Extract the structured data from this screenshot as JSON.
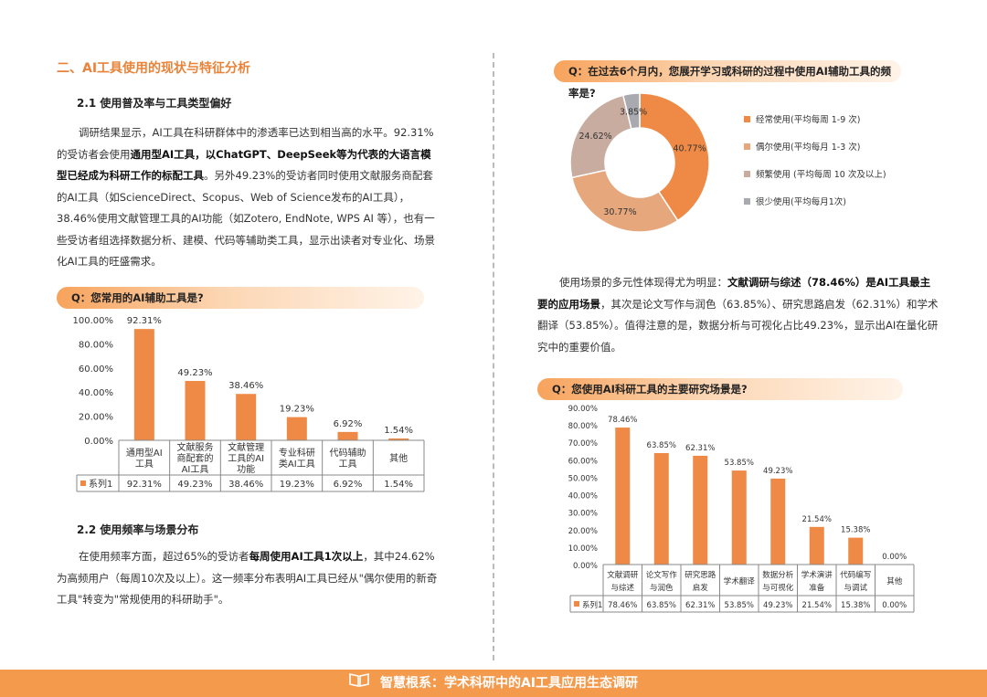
{
  "section": {
    "title": "二、AI工具使用的现状与特征分析"
  },
  "s21": {
    "title": "2.1 使用普及率与工具类型偏好",
    "p1_a": "调研结果显示，AI工具在科研群体中的渗透率已达到相当高的水平。92.31%的受访者会使用",
    "p1_b": "通用型AI工具，以ChatGPT、DeepSeek等为代表的大语言模型已经成为科研工作的标配工具",
    "p1_c": "。另外49.23%的受访者同时使用文献服务商配套的AI工具（如ScienceDirect、Scopus、Web of Science发布的AI工具），38.46%使用文献管理工具的AI功能（如Zotero, EndNote, WPS AI 等），也有一些受访者组选择数据分析、建模、代码等辅助类工具，显示出读者对专业化、场景化AI工具的旺盛需求。"
  },
  "q1": {
    "label": "Q：您常用的AI辅助工具是?"
  },
  "s22": {
    "title": "2.2 使用频率与场景分布",
    "p1_a": "在使用频率方面，超过65%的受访者",
    "p1_b": "每周使用AI工具1次以上",
    "p1_c": "，其中24.62%为高频用户（每周10次及以上）。这一频率分布表明AI工具已经从\"偶尔使用的新奇工具\"转变为\"常规使用的科研助手\"。"
  },
  "q2": {
    "label": "Q：在过去6个月内，您展开学习或科研的过程中使用AI辅助工具的频率是?"
  },
  "p_right_a": "使用场景的多元性体现得尤为明显：",
  "p_right_b": "文献调研与综述（78.46%）是AI工具最主要的应用场景",
  "p_right_c": "，其次是论文写作与润色（63.85%）、研究思路启发（62.31%）和学术翻译（53.85%）。值得注意的是，数据分析与可视化占比49.23%，显示出AI在量化研究中的重要价值。",
  "q3": {
    "label": "Q：您使用AI科研工具的主要研究场景是?"
  },
  "footer": {
    "text": "智慧根系：学术科研中的AI工具应用生态调研"
  },
  "colors": {
    "accent": "#e8833a",
    "bar": "#ee8a45",
    "pie": [
      "#ee8a45",
      "#e6a77c",
      "#c8aca0",
      "#a9aab0"
    ]
  },
  "chart_data": [
    {
      "type": "bar",
      "categories": [
        "通用型AI\n工具",
        "文献服务\n商配套的\nAI工具",
        "文献管理\n工具的AI\n功能",
        "专业科研\n类AI工具",
        "代码辅助\n工具",
        "其他"
      ],
      "series": [
        {
          "name": "系列1",
          "values": [
            92.31,
            49.23,
            38.46,
            19.23,
            6.92,
            1.54
          ]
        }
      ],
      "value_labels": [
        "92.31%",
        "49.23%",
        "38.46%",
        "19.23%",
        "6.92%",
        "1.54%"
      ],
      "y_ticks": [
        "100.00%",
        "80.00%",
        "60.00%",
        "40.00%",
        "20.00%",
        "0.00%"
      ],
      "ylim": [
        0,
        100
      ]
    },
    {
      "type": "pie",
      "labels": [
        "经常使用(平均每周 1-9 次)",
        "偶尔使用(平均每月 1-3 次)",
        "频繁使用 (平均每周 10 次及以上)",
        "很少使用(平均每月1次)"
      ],
      "values": [
        40.77,
        30.77,
        24.62,
        3.85
      ],
      "value_labels": [
        "40.77%",
        "30.77%",
        "24.62%",
        "3.85%"
      ]
    },
    {
      "type": "bar",
      "categories": [
        "文献调研\n与综述",
        "论文写作\n与润色",
        "研究思路\n启发",
        "学术翻译",
        "数据分析\n与可视化",
        "学术演讲\n准备",
        "代码编写\n与调试",
        "其他"
      ],
      "series": [
        {
          "name": "系列1",
          "values": [
            78.46,
            63.85,
            62.31,
            53.85,
            49.23,
            21.54,
            15.38,
            0.0
          ]
        }
      ],
      "value_labels": [
        "78.46%",
        "63.85%",
        "62.31%",
        "53.85%",
        "49.23%",
        "21.54%",
        "15.38%",
        "0.00%"
      ],
      "y_ticks": [
        "90.00%",
        "80.00%",
        "70.00%",
        "60.00%",
        "50.00%",
        "40.00%",
        "30.00%",
        "20.00%",
        "10.00%",
        "0.00%"
      ],
      "ylim": [
        0,
        90
      ]
    }
  ]
}
